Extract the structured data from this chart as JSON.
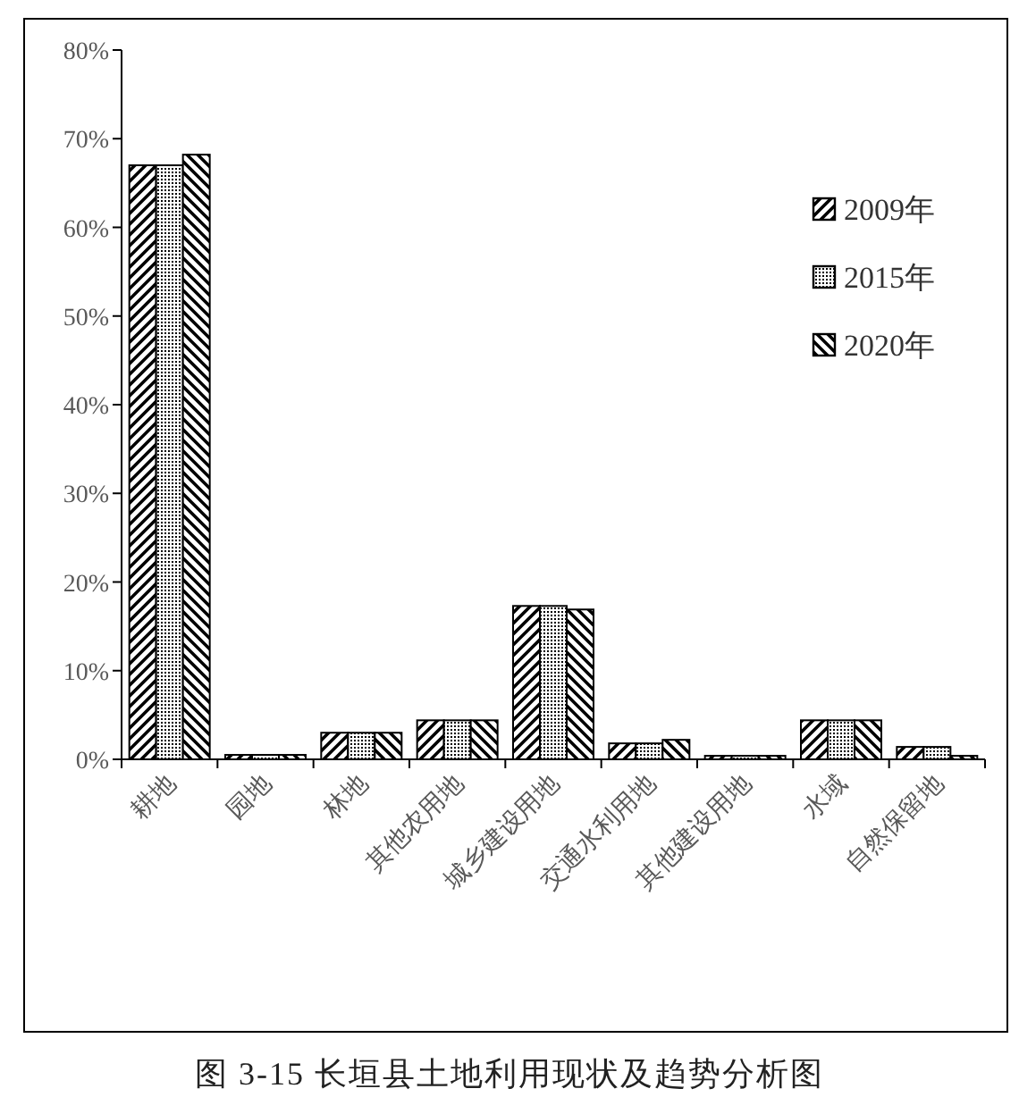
{
  "chart_data": {
    "type": "bar",
    "categories": [
      "耕地",
      "园地",
      "林地",
      "其他农用地",
      "城乡建设用地",
      "交通水利用地",
      "其他建设用地",
      "水域",
      "自然保留地"
    ],
    "series": [
      {
        "name": "2009年",
        "color": "#000000",
        "values": [
          67.0,
          0.5,
          3.0,
          4.4,
          17.3,
          1.8,
          0.4,
          4.4,
          1.4
        ]
      },
      {
        "name": "2015年",
        "color": "#000000",
        "values": [
          67.0,
          0.5,
          3.0,
          4.4,
          17.3,
          1.8,
          0.4,
          4.4,
          1.4
        ]
      },
      {
        "name": "2020年",
        "color": "#000000",
        "values": [
          68.2,
          0.5,
          3.0,
          4.4,
          16.9,
          2.2,
          0.4,
          4.4,
          0.4
        ]
      }
    ],
    "ylim": [
      0,
      80
    ],
    "yticks": [
      {
        "value": 0,
        "label": "0%"
      },
      {
        "value": 10,
        "label": "10%"
      },
      {
        "value": 20,
        "label": "20%"
      },
      {
        "value": 30,
        "label": "30%"
      },
      {
        "value": 40,
        "label": "40%"
      },
      {
        "value": 50,
        "label": "50%"
      },
      {
        "value": 60,
        "label": "60%"
      },
      {
        "value": 70,
        "label": "70%"
      },
      {
        "value": 80,
        "label": "80%"
      }
    ],
    "legend": "right",
    "grid": false,
    "annotations": [
      "图 3-15 长垣县土地利用现状及趋势分析图"
    ]
  }
}
